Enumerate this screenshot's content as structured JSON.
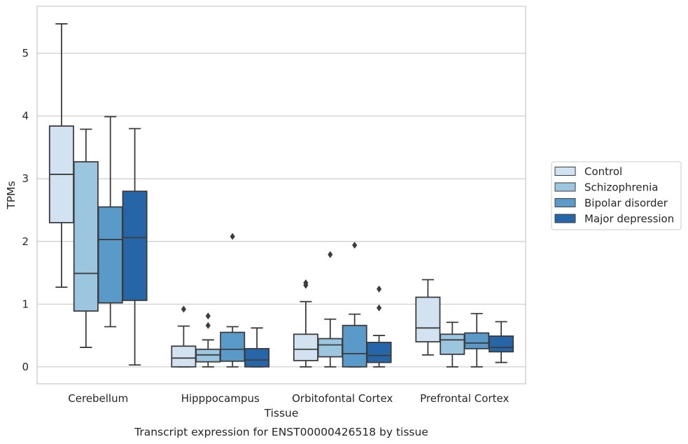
{
  "chart_data": {
    "type": "box",
    "caption": "Transcript expression for ENST00000426518 by tissue",
    "xlabel": "Tissue",
    "ylabel": "TPMs",
    "ylim": [
      -0.27,
      5.75
    ],
    "yticks": [
      0,
      1,
      2,
      3,
      4,
      5
    ],
    "grid": "horizontal",
    "legend_position": "right",
    "categories": [
      "Cerebellum",
      "Hipppocampus",
      "Orbitofontal Cortex",
      "Prefrontal Cortex"
    ],
    "series": [
      {
        "name": "Control",
        "color": "#d2e2f1",
        "boxes": [
          {
            "whisker_low": 1.27,
            "q1": 2.3,
            "median": 3.07,
            "q3": 3.84,
            "whisker_high": 5.47,
            "outliers": []
          },
          {
            "whisker_low": 0.0,
            "q1": 0.0,
            "median": 0.14,
            "q3": 0.33,
            "whisker_high": 0.65,
            "outliers": [
              0.92
            ]
          },
          {
            "whisker_low": 0.0,
            "q1": 0.1,
            "median": 0.28,
            "q3": 0.52,
            "whisker_high": 1.04,
            "outliers": [
              1.3,
              1.34
            ]
          },
          {
            "whisker_low": 0.19,
            "q1": 0.4,
            "median": 0.62,
            "q3": 1.11,
            "whisker_high": 1.39,
            "outliers": []
          }
        ]
      },
      {
        "name": "Schizophrenia",
        "color": "#9cc5df",
        "boxes": [
          {
            "whisker_low": 0.31,
            "q1": 0.89,
            "median": 1.49,
            "q3": 3.27,
            "whisker_high": 3.79,
            "outliers": []
          },
          {
            "whisker_low": 0.0,
            "q1": 0.08,
            "median": 0.19,
            "q3": 0.28,
            "whisker_high": 0.43,
            "outliers": [
              0.66,
              0.81
            ]
          },
          {
            "whisker_low": 0.0,
            "q1": 0.16,
            "median": 0.35,
            "q3": 0.45,
            "whisker_high": 0.76,
            "outliers": [
              1.79
            ]
          },
          {
            "whisker_low": 0.0,
            "q1": 0.2,
            "median": 0.43,
            "q3": 0.52,
            "whisker_high": 0.71,
            "outliers": []
          }
        ]
      },
      {
        "name": "Bipolar disorder",
        "color": "#5a9ac9",
        "boxes": [
          {
            "whisker_low": 0.64,
            "q1": 1.02,
            "median": 2.03,
            "q3": 2.55,
            "whisker_high": 3.99,
            "outliers": []
          },
          {
            "whisker_low": 0.0,
            "q1": 0.09,
            "median": 0.28,
            "q3": 0.55,
            "whisker_high": 0.64,
            "outliers": [
              2.08
            ]
          },
          {
            "whisker_low": 0.0,
            "q1": 0.0,
            "median": 0.21,
            "q3": 0.66,
            "whisker_high": 0.84,
            "outliers": [
              1.94
            ]
          },
          {
            "whisker_low": 0.0,
            "q1": 0.29,
            "median": 0.38,
            "q3": 0.54,
            "whisker_high": 0.85,
            "outliers": []
          }
        ]
      },
      {
        "name": "Major depression",
        "color": "#2666a8",
        "boxes": [
          {
            "whisker_low": 0.03,
            "q1": 1.06,
            "median": 2.06,
            "q3": 2.8,
            "whisker_high": 3.8,
            "outliers": []
          },
          {
            "whisker_low": 0.0,
            "q1": 0.0,
            "median": 0.11,
            "q3": 0.29,
            "whisker_high": 0.62,
            "outliers": []
          },
          {
            "whisker_low": 0.0,
            "q1": 0.07,
            "median": 0.18,
            "q3": 0.39,
            "whisker_high": 0.5,
            "outliers": [
              0.94,
              1.24
            ]
          },
          {
            "whisker_low": 0.07,
            "q1": 0.24,
            "median": 0.31,
            "q3": 0.49,
            "whisker_high": 0.72,
            "outliers": []
          }
        ]
      }
    ]
  }
}
